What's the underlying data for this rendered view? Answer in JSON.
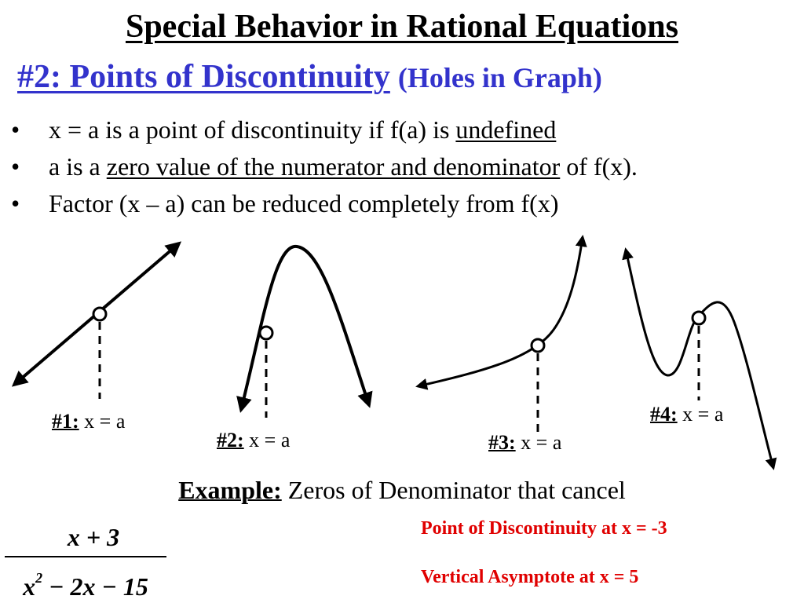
{
  "title": "Special Behavior in Rational Equations",
  "subtitle": {
    "main": "#2: Points of Discontinuity",
    "paren": "(Holes in Graph)"
  },
  "bullets": {
    "b1": {
      "pre": "x = a is a point of discontinuity if f(a) is ",
      "emph": "undefined"
    },
    "b2": {
      "pre": "a is a ",
      "emph": "zero value of the numerator and denominator",
      "post": " of f(x)."
    },
    "b3": {
      "text": "Factor (x – a) can be reduced completely from f(x)"
    },
    "marker": "•"
  },
  "graphs": [
    {
      "num": "#1:",
      "eq": " x = a"
    },
    {
      "num": "#2:",
      "eq": " x = a"
    },
    {
      "num": "#3:",
      "eq": " x = a"
    },
    {
      "num": "#4:",
      "eq": " x = a"
    }
  ],
  "example": {
    "head": "Example:",
    "text": " Zeros of Denominator that cancel"
  },
  "fraction": {
    "numerator": "x + 3",
    "den_a": "x",
    "den_exp": "2",
    "den_b": " − 2x − 15"
  },
  "notes": {
    "discontinuity": "Point of Discontinuity at x = -3",
    "asymptote": "Vertical Asymptote at x = 5"
  },
  "colors": {
    "subtitle": "#3333cc",
    "notes": "#e00000"
  }
}
